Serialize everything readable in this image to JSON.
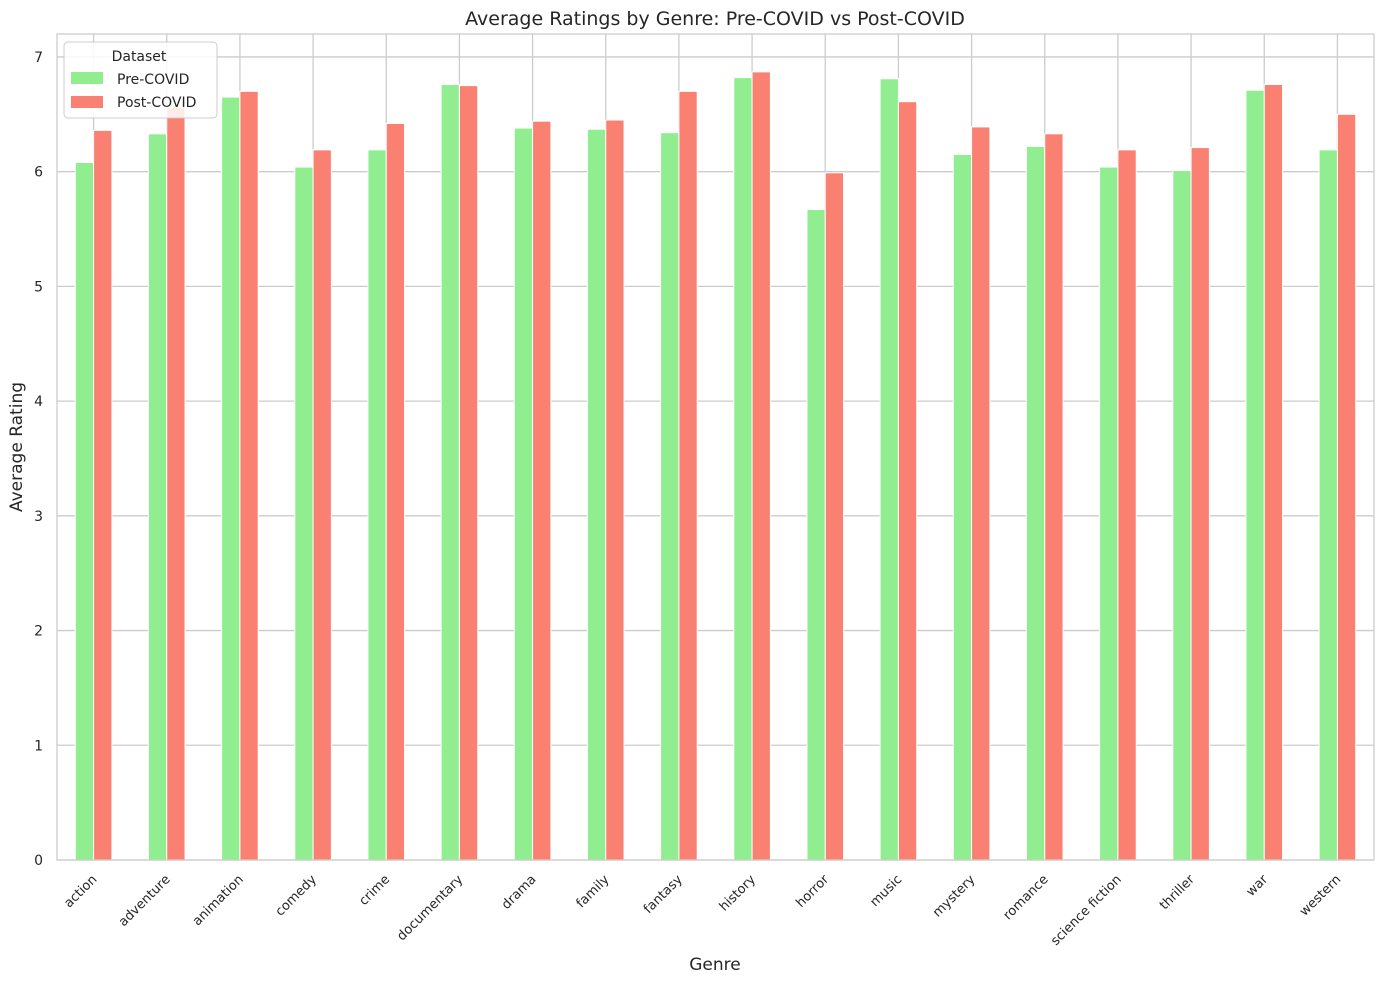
{
  "chart_data": {
    "type": "bar",
    "title": "Average Ratings by Genre: Pre-COVID vs Post-COVID",
    "xlabel": "Genre",
    "ylabel": "Average Rating",
    "ylim": [
      0,
      7.2
    ],
    "yticks": [
      "0",
      "1",
      "2",
      "3",
      "4",
      "5",
      "6",
      "7"
    ],
    "grid": true,
    "legend": {
      "title": "Dataset",
      "placement": "top-left"
    },
    "categories": [
      "action",
      "adventure",
      "animation",
      "comedy",
      "crime",
      "documentary",
      "drama",
      "family",
      "fantasy",
      "history",
      "horror",
      "music",
      "mystery",
      "romance",
      "science fiction",
      "thriller",
      "war",
      "western"
    ],
    "series": [
      {
        "name": "Pre-COVID",
        "color": "#90ee90",
        "values": [
          6.08,
          6.33,
          6.65,
          6.04,
          6.19,
          6.76,
          6.38,
          6.37,
          6.34,
          6.82,
          5.67,
          6.81,
          6.15,
          6.22,
          6.04,
          6.01,
          6.71,
          6.19
        ]
      },
      {
        "name": "Post-COVID",
        "color": "#fa8072",
        "values": [
          6.36,
          6.56,
          6.7,
          6.19,
          6.42,
          6.75,
          6.44,
          6.45,
          6.7,
          6.87,
          5.99,
          6.61,
          6.39,
          6.33,
          6.19,
          6.21,
          6.76,
          6.5
        ]
      }
    ]
  }
}
